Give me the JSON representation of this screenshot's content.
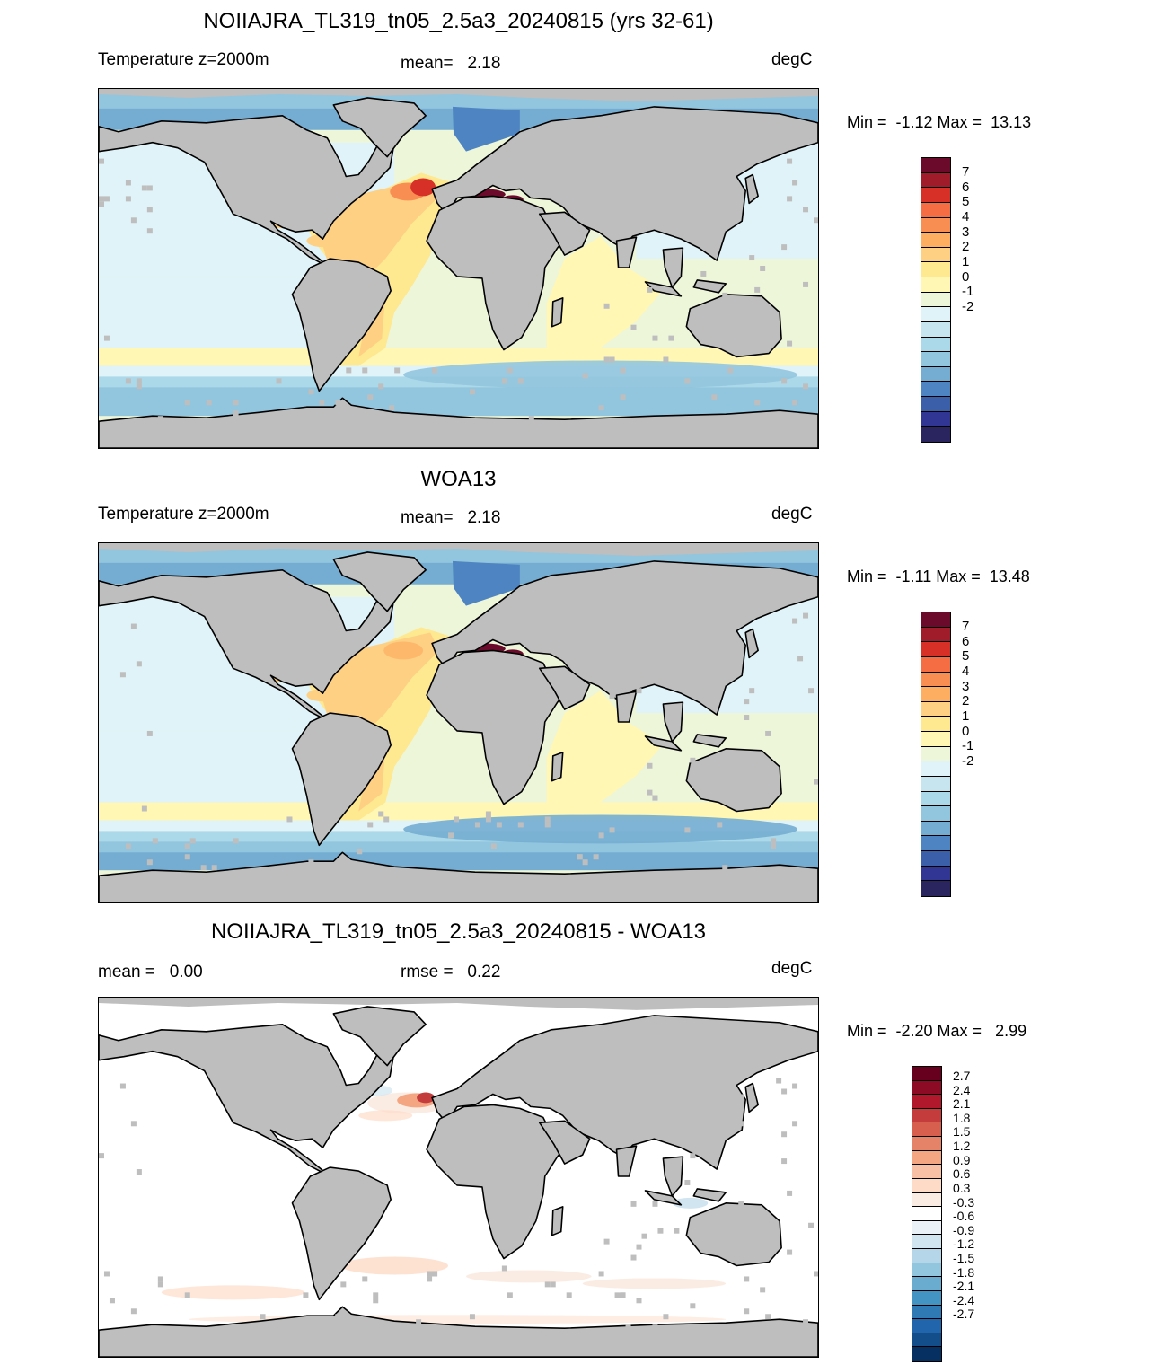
{
  "panels": [
    {
      "title": "NOIIAJRA_TL319_tn05_2.5a3_20240815 (yrs 32-61)",
      "left_label": "Temperature z=2000m",
      "center_label": "mean=   2.18",
      "units": "degC",
      "minmax": "Min =  -1.12 Max =  13.13",
      "field": "temperature",
      "colorbar": {
        "colors": [
          "#6b0a2b",
          "#a11c2a",
          "#d73027",
          "#f46d43",
          "#f98e52",
          "#fdae61",
          "#fdd084",
          "#fee890",
          "#fff7b3",
          "#eef6d9",
          "#e0f3f8",
          "#c7e5ef",
          "#abd9e9",
          "#92c5de",
          "#74add1",
          "#4d84c1",
          "#3b5fa8",
          "#313695",
          "#2a255f"
        ],
        "labels": [
          "7",
          "6",
          "5",
          "4",
          "3",
          "2",
          "1",
          "0",
          "-1",
          "-2"
        ]
      }
    },
    {
      "title": "WOA13",
      "left_label": "Temperature z=2000m",
      "center_label": "mean=   2.18",
      "units": "degC",
      "minmax": "Min =  -1.11 Max =  13.48",
      "field": "temperature",
      "colorbar": {
        "colors": [
          "#6b0a2b",
          "#a11c2a",
          "#d73027",
          "#f46d43",
          "#f98e52",
          "#fdae61",
          "#fdd084",
          "#fee890",
          "#fff7b3",
          "#eef6d9",
          "#e0f3f8",
          "#c7e5ef",
          "#abd9e9",
          "#92c5de",
          "#74add1",
          "#4d84c1",
          "#3b5fa8",
          "#313695",
          "#2a255f"
        ],
        "labels": [
          "7",
          "6",
          "5",
          "4",
          "3",
          "2",
          "1",
          "0",
          "-1",
          "-2"
        ]
      }
    },
    {
      "title": "NOIIAJRA_TL319_tn05_2.5a3_20240815 - WOA13",
      "left_label": "mean =   0.00",
      "center_label": "rmse =   0.22",
      "units": "degC",
      "minmax": "Min =  -2.20 Max =   2.99",
      "field": "difference",
      "colorbar": {
        "colors": [
          "#67001f",
          "#8e0b25",
          "#b2182b",
          "#c43c3c",
          "#d6604d",
          "#e58368",
          "#f4a582",
          "#f8c1a6",
          "#fddbc7",
          "#fbece3",
          "#ffffff",
          "#eaf2f8",
          "#d1e5f0",
          "#b4d6e8",
          "#92c5de",
          "#6aacd0",
          "#4393c3",
          "#2f79b5",
          "#2166ac",
          "#144e8a",
          "#053061"
        ],
        "labels": [
          "2.7",
          "2.4",
          "2.1",
          "1.8",
          "1.5",
          "1.2",
          "0.9",
          "0.6",
          "0.3",
          "-0.3",
          "-0.6",
          "-0.9",
          "-1.2",
          "-1.5",
          "-1.8",
          "-2.1",
          "-2.4",
          "-2.7"
        ]
      }
    }
  ],
  "colors": {
    "land": "#bebebe",
    "coastline": "#000000"
  }
}
